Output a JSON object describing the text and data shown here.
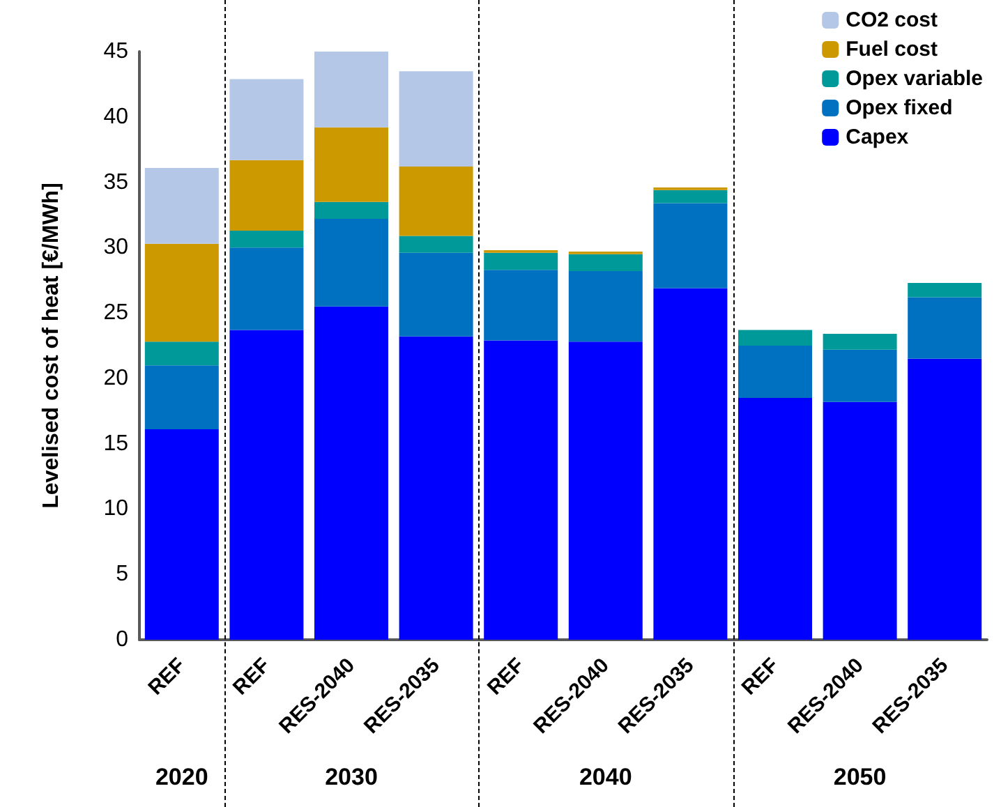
{
  "chart_data": {
    "type": "bar",
    "stacked": true,
    "ylabel": "Levelised cost of heat [€/MWh]",
    "categories": [
      "REF",
      "REF",
      "RES-2040",
      "RES-2035",
      "REF",
      "RES-2040",
      "RES-2035",
      "REF",
      "RES-2040",
      "RES-2035"
    ],
    "annotations": [
      "2020",
      "2030",
      "2040",
      "2050"
    ],
    "series": [
      {
        "name": "Capex",
        "color": "#0000ff",
        "values": [
          16.1,
          23.7,
          25.5,
          23.2,
          22.9,
          22.8,
          26.9,
          18.5,
          18.2,
          21.5
        ]
      },
      {
        "name": "Opex fixed",
        "color": "#0070c0",
        "values": [
          4.9,
          6.3,
          6.7,
          6.4,
          5.4,
          5.4,
          6.5,
          4.0,
          4.0,
          4.7
        ]
      },
      {
        "name": "Opex variable",
        "color": "#009999",
        "values": [
          1.8,
          1.3,
          1.3,
          1.3,
          1.3,
          1.3,
          1.0,
          1.2,
          1.2,
          1.1
        ]
      },
      {
        "name": "Fuel cost",
        "color": "#cc9900",
        "values": [
          7.5,
          5.4,
          5.7,
          5.3,
          0.2,
          0.2,
          0.2,
          null,
          null,
          null
        ]
      },
      {
        "name": "CO2 cost",
        "color": "#b4c7e7",
        "values": [
          5.8,
          6.2,
          5.8,
          7.3,
          null,
          null,
          null,
          null,
          null,
          null
        ]
      }
    ],
    "ylim": [
      0,
      45
    ],
    "yticks": [
      0,
      5,
      10,
      15,
      20,
      25,
      30,
      35,
      40,
      45
    ],
    "grid": false,
    "legend": "top right"
  }
}
